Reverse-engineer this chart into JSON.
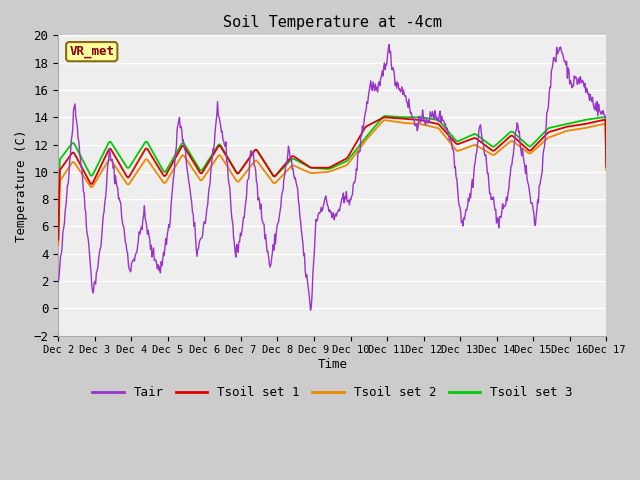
{
  "title": "Soil Temperature at -4cm",
  "ylabel": "Temperature (C)",
  "xlabel": "Time",
  "ylim": [
    -2,
    20
  ],
  "yticks": [
    -2,
    0,
    2,
    4,
    6,
    8,
    10,
    12,
    14,
    16,
    18,
    20
  ],
  "xtick_labels": [
    "Dec 2",
    "Dec 3",
    "Dec 4",
    "Dec 5",
    "Dec 6",
    "Dec 7",
    "Dec 8",
    "Dec 9",
    "Dec 10",
    "Dec 11",
    "Dec 12",
    "Dec 13",
    "Dec 14",
    "Dec 15",
    "Dec 16",
    "Dec 17"
  ],
  "xtick_positions": [
    0,
    1,
    2,
    3,
    4,
    5,
    6,
    7,
    8,
    9,
    10,
    11,
    12,
    13,
    14,
    15
  ],
  "annotation_text": "VR_met",
  "colors": {
    "Tair": "#9933cc",
    "Tsoil1": "#dd0000",
    "Tsoil2": "#ee8800",
    "Tsoil3": "#00cc00"
  },
  "legend_labels": [
    "Tair",
    "Tsoil set 1",
    "Tsoil set 2",
    "Tsoil set 3"
  ],
  "tair_key_t": [
    0.0,
    0.15,
    0.45,
    0.7,
    0.95,
    1.15,
    1.4,
    1.65,
    1.95,
    2.15,
    2.35,
    2.55,
    2.8,
    3.05,
    3.3,
    3.55,
    3.8,
    4.05,
    4.35,
    4.6,
    4.85,
    5.05,
    5.3,
    5.55,
    5.8,
    6.05,
    6.3,
    6.55,
    6.75,
    6.92,
    7.05,
    7.3,
    7.55,
    7.8,
    8.05,
    8.35,
    8.55,
    8.75,
    9.05,
    9.25,
    9.5,
    9.75,
    10.0,
    10.3,
    10.55,
    10.8,
    11.05,
    11.3,
    11.55,
    11.8,
    12.05,
    12.3,
    12.55,
    12.8,
    13.05,
    13.25,
    13.5,
    13.75,
    14.05,
    14.3,
    14.55,
    14.8,
    15.0
  ],
  "tair_key_v": [
    1.8,
    5.8,
    15.2,
    8.5,
    1.1,
    4.2,
    11.5,
    8.5,
    2.8,
    4.3,
    7.0,
    4.2,
    2.8,
    6.3,
    14.1,
    10.0,
    4.0,
    6.8,
    14.3,
    11.5,
    3.8,
    6.0,
    11.8,
    7.2,
    3.0,
    6.8,
    11.7,
    8.5,
    3.2,
    -0.2,
    6.4,
    8.0,
    6.5,
    7.9,
    8.2,
    13.5,
    16.5,
    15.8,
    19.0,
    16.5,
    15.7,
    13.5,
    13.8,
    14.1,
    13.9,
    11.8,
    6.2,
    8.5,
    13.5,
    9.0,
    6.2,
    8.2,
    13.5,
    10.0,
    6.1,
    10.5,
    17.5,
    19.2,
    16.5,
    16.8,
    15.5,
    14.5,
    14.0
  ],
  "tsoil1_key_t": [
    0,
    0.4,
    0.9,
    1.4,
    1.9,
    2.4,
    2.9,
    3.4,
    3.9,
    4.4,
    4.9,
    5.4,
    5.9,
    6.4,
    6.9,
    7.4,
    7.9,
    8.4,
    8.9,
    9.4,
    9.9,
    10.4,
    10.9,
    11.4,
    11.9,
    12.4,
    12.9,
    13.4,
    13.9,
    14.4,
    14.9,
    15.0
  ],
  "tsoil1_key_v": [
    10.0,
    11.5,
    9.0,
    11.8,
    9.5,
    11.8,
    9.6,
    12.0,
    9.8,
    12.0,
    9.8,
    11.7,
    9.6,
    11.2,
    10.3,
    10.3,
    11.0,
    13.3,
    14.0,
    13.9,
    13.8,
    13.5,
    12.0,
    12.5,
    11.5,
    12.7,
    11.5,
    12.9,
    13.3,
    13.5,
    13.8,
    13.8
  ],
  "tsoil2_key_t": [
    0,
    0.4,
    0.9,
    1.4,
    1.9,
    2.4,
    2.9,
    3.4,
    3.9,
    4.4,
    4.9,
    5.4,
    5.9,
    6.4,
    6.9,
    7.4,
    7.9,
    8.4,
    8.9,
    9.4,
    9.9,
    10.4,
    10.9,
    11.4,
    11.9,
    12.4,
    12.9,
    13.4,
    13.9,
    14.4,
    14.9,
    15.0
  ],
  "tsoil2_key_v": [
    9.2,
    10.8,
    8.8,
    11.0,
    9.0,
    11.0,
    9.1,
    11.3,
    9.3,
    11.3,
    9.2,
    10.9,
    9.1,
    10.5,
    9.9,
    10.0,
    10.5,
    12.3,
    13.8,
    13.6,
    13.5,
    13.2,
    11.5,
    12.0,
    11.2,
    12.3,
    11.3,
    12.5,
    13.0,
    13.2,
    13.5,
    13.5
  ],
  "tsoil3_key_t": [
    0,
    0.4,
    0.9,
    1.4,
    1.9,
    2.4,
    2.9,
    3.4,
    3.9,
    4.4,
    4.9,
    5.4,
    5.9,
    6.4,
    6.9,
    7.4,
    7.9,
    8.4,
    8.9,
    9.4,
    9.9,
    10.4,
    10.9,
    11.4,
    11.9,
    12.4,
    12.9,
    13.4,
    13.9,
    14.4,
    14.9,
    15.0
  ],
  "tsoil3_key_v": [
    10.8,
    12.2,
    9.6,
    12.3,
    10.2,
    12.3,
    9.9,
    12.2,
    10.0,
    12.1,
    9.8,
    11.7,
    9.6,
    11.0,
    10.3,
    10.2,
    10.8,
    12.5,
    14.1,
    14.0,
    14.0,
    13.8,
    12.2,
    12.8,
    11.8,
    13.0,
    11.8,
    13.2,
    13.5,
    13.8,
    14.0,
    14.0
  ]
}
